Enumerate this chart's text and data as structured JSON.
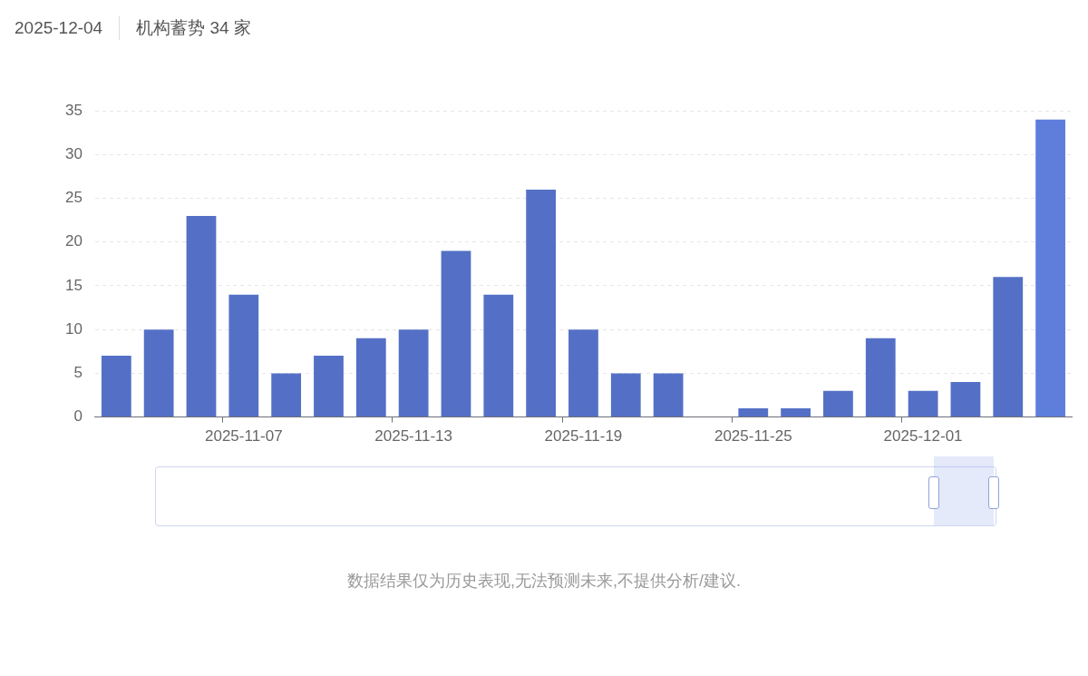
{
  "chart_data": {
    "type": "bar",
    "title": "2025-12-04",
    "subtitle": "机构蓄势 34 家",
    "categories": [
      null,
      null,
      null,
      "2025-11-07",
      null,
      null,
      null,
      "2025-11-13",
      null,
      null,
      null,
      "2025-11-19",
      null,
      null,
      null,
      "2025-11-25",
      null,
      null,
      null,
      "2025-12-01",
      null,
      null,
      null
    ],
    "values": [
      7,
      10,
      23,
      14,
      5,
      7,
      9,
      10,
      19,
      14,
      26,
      10,
      5,
      5,
      0,
      1,
      1,
      3,
      9,
      3,
      4,
      16,
      34
    ],
    "colors": [
      "#5470c6",
      "#5470c6",
      "#5470c6",
      "#5470c6",
      "#5470c6",
      "#5470c6",
      "#5470c6",
      "#5470c6",
      "#5470c6",
      "#5470c6",
      "#5470c6",
      "#5470c6",
      "#5470c6",
      "#5470c6",
      "#5470c6",
      "#5470c6",
      "#5470c6",
      "#5470c6",
      "#5470c6",
      "#5470c6",
      "#5470c6",
      "#5470c6",
      "#5f7edc"
    ],
    "ylim": [
      0,
      35
    ],
    "yticks": [
      0,
      5,
      10,
      15,
      20,
      25,
      30,
      35
    ],
    "grid": "y",
    "legend": false,
    "annotations": [
      "数据结果仅为历史表现,无法预测未来,不提供分析/建议."
    ]
  }
}
